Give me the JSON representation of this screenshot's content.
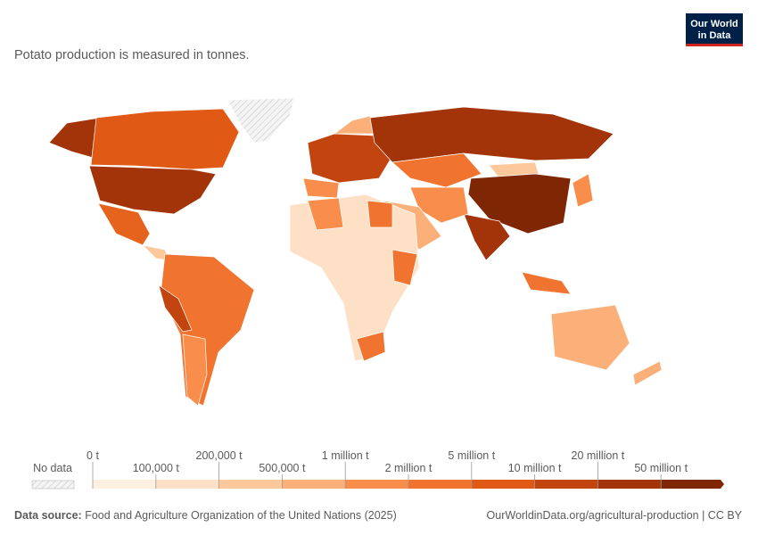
{
  "header": {
    "subtitle": "Potato production is measured in tonnes.",
    "logo": [
      "Our World",
      "in Data"
    ]
  },
  "legend": {
    "no_data": "No data",
    "ticks": [
      "0 t",
      "100,000 t",
      "200,000 t",
      "500,000 t",
      "1 million t",
      "2 million t",
      "5 million t",
      "10 million t",
      "20 million t",
      "50 million t"
    ],
    "colors": [
      "#fef0e1",
      "#fde0c5",
      "#fdc99c",
      "#fbb07a",
      "#f98e4c",
      "#f07430",
      "#e05a16",
      "#c24510",
      "#a3340a",
      "#7f2704"
    ]
  },
  "footer": {
    "source_label": "Data source:",
    "source": "Food and Agriculture Organization of the United Nations (2025)",
    "url": "OurWorldinData.org/agricultural-production | CC BY"
  }
}
